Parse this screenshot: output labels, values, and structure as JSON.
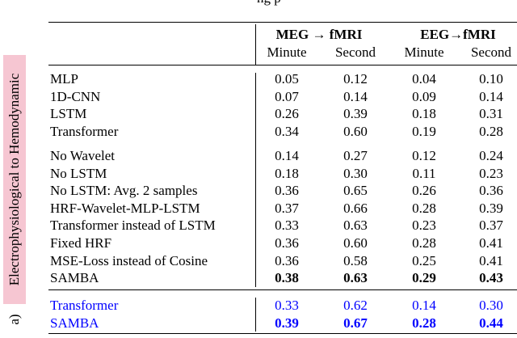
{
  "header": {
    "fragment": "ng p",
    "side_label": "Electrophysiological to Hemodynamic",
    "panel": "a)"
  },
  "table": {
    "groups": [
      "MEG → fMRI",
      "EEG→fMRI"
    ],
    "subheads": [
      "Minute",
      "Second",
      "Minute",
      "Second"
    ],
    "sections": [
      {
        "color": "#000000",
        "rows": [
          {
            "label": "MLP",
            "values": [
              "0.05",
              "0.12",
              "0.04",
              "0.10"
            ]
          },
          {
            "label": "1D-CNN",
            "values": [
              "0.07",
              "0.14",
              "0.09",
              "0.14"
            ]
          },
          {
            "label": "LSTM",
            "values": [
              "0.26",
              "0.39",
              "0.18",
              "0.31"
            ]
          },
          {
            "label": "Transformer",
            "values": [
              "0.34",
              "0.60",
              "0.19",
              "0.28"
            ]
          }
        ]
      },
      {
        "color": "#000000",
        "rows": [
          {
            "label": "No Wavelet",
            "values": [
              "0.14",
              "0.27",
              "0.12",
              "0.24"
            ]
          },
          {
            "label": "No LSTM",
            "values": [
              "0.18",
              "0.30",
              "0.11",
              "0.23"
            ]
          },
          {
            "label": "No LSTM: Avg. 2 samples",
            "values": [
              "0.36",
              "0.65",
              "0.26",
              "0.36"
            ]
          },
          {
            "label": "HRF-Wavelet-MLP-LSTM",
            "values": [
              "0.37",
              "0.66",
              "0.28",
              "0.39"
            ]
          },
          {
            "label": "Transformer instead of LSTM",
            "values": [
              "0.33",
              "0.63",
              "0.23",
              "0.37"
            ]
          },
          {
            "label": "Fixed HRF",
            "values": [
              "0.36",
              "0.60",
              "0.28",
              "0.41"
            ]
          },
          {
            "label": "MSE-Loss instead of Cosine",
            "values": [
              "0.36",
              "0.58",
              "0.25",
              "0.41"
            ]
          },
          {
            "label": "SAMBA",
            "values": [
              "0.38",
              "0.63",
              "0.29",
              "0.43"
            ],
            "bold": true
          }
        ]
      },
      {
        "color": "#0000ff",
        "rows": [
          {
            "label": "Transformer",
            "values": [
              "0.33",
              "0.62",
              "0.14",
              "0.30"
            ]
          },
          {
            "label": "SAMBA",
            "values": [
              "0.39",
              "0.67",
              "0.28",
              "0.44"
            ],
            "bold": true
          }
        ]
      }
    ]
  }
}
